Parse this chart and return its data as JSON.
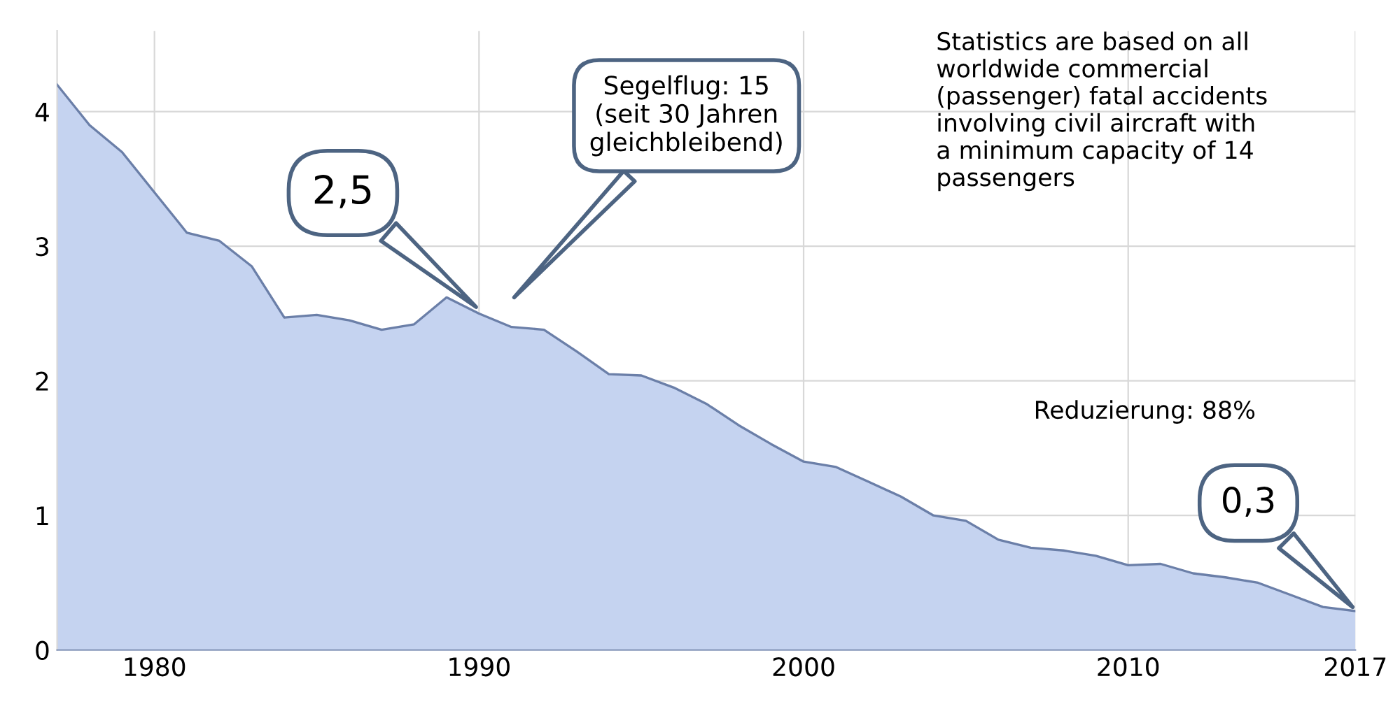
{
  "chart_data": {
    "type": "area",
    "x": [
      1977,
      1978,
      1979,
      1980,
      1981,
      1982,
      1983,
      1984,
      1985,
      1986,
      1987,
      1988,
      1989,
      1990,
      1991,
      1992,
      1993,
      1994,
      1995,
      1996,
      1997,
      1998,
      1999,
      2000,
      2001,
      2002,
      2003,
      2004,
      2005,
      2006,
      2007,
      2008,
      2009,
      2010,
      2011,
      2012,
      2013,
      2014,
      2015,
      2016,
      2017
    ],
    "series": [
      {
        "color": "#c5d3f0",
        "values": [
          4.2,
          3.9,
          3.7,
          3.4,
          3.1,
          3.04,
          2.85,
          2.47,
          2.49,
          2.45,
          2.38,
          2.42,
          2.62,
          2.5,
          2.4,
          2.38,
          2.22,
          2.05,
          2.04,
          1.95,
          1.83,
          1.67,
          1.53,
          1.4,
          1.36,
          1.25,
          1.14,
          1.0,
          0.96,
          0.82,
          0.76,
          0.74,
          0.7,
          0.63,
          0.64,
          0.57,
          0.54,
          0.5,
          0.41,
          0.32,
          0.29
        ]
      }
    ],
    "xlim": [
      1977,
      2017
    ],
    "xticks": [
      1980,
      1990,
      2000,
      2010,
      2017
    ],
    "ylim": [
      0,
      4.6
    ],
    "yticks": [
      0,
      1,
      2,
      3,
      4
    ],
    "grid": true,
    "legend": false,
    "annotations": [
      "2,5",
      "Segelflug: 15\n(seit 30 Jahren\ngleichbleibend)",
      "0,3",
      "Statistics are based on all\nworldwide commercial\n(passenger) fatal accidents\ninvolving civil aircraft with\na minimum capacity of 14\npassengers",
      "Reduzierung: 88%"
    ]
  }
}
